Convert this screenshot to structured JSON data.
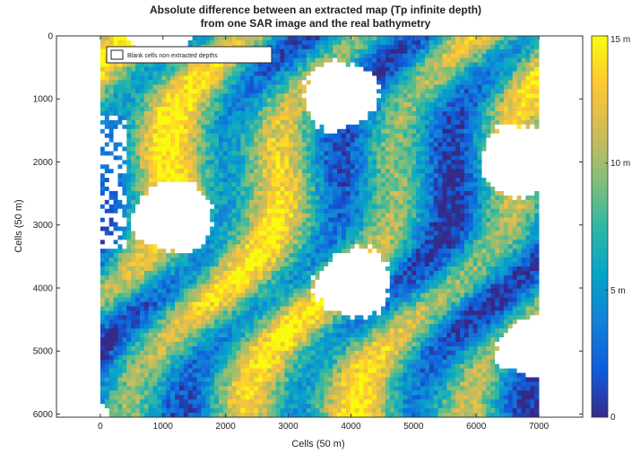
{
  "chart_data": {
    "type": "heatmap",
    "title_lines": [
      "Absolute difference between an extracted map (Tp infinite depth)",
      "from one SAR image and the real bathymetry"
    ],
    "xlabel": "Cells (50 m)",
    "ylabel": "Cells (50 m)",
    "xlim": [
      -700,
      7700
    ],
    "ylim": [
      0,
      6050
    ],
    "y_reversed": true,
    "x_ticks": [
      0,
      1000,
      2000,
      3000,
      4000,
      5000,
      6000,
      7000
    ],
    "x_tick_labels": [
      "0",
      "1000",
      "2000",
      "3000",
      "4000",
      "5000",
      "6000",
      "7000"
    ],
    "y_ticks": [
      0,
      1000,
      2000,
      3000,
      4000,
      5000,
      6000
    ],
    "y_tick_labels": [
      "0",
      "1000",
      "2000",
      "3000",
      "4000",
      "5000",
      "6000"
    ],
    "data_extent": {
      "x": [
        0,
        7000
      ],
      "y": [
        0,
        6050
      ]
    },
    "colorbar": {
      "range": [
        0,
        15
      ],
      "colormap": "parula",
      "ticks": [
        0,
        5,
        10,
        15
      ],
      "tick_labels": [
        "0",
        "5 m",
        "10 m",
        "15 m"
      ],
      "colors": [
        "#352a87",
        "#0f5cdd",
        "#1481d6",
        "#06a4ca",
        "#2eb7a4",
        "#87bf77",
        "#d1bb59",
        "#fec832",
        "#f9fb0e"
      ]
    },
    "legend": {
      "placement": "top-left",
      "label": "Blank cells non extracted depths",
      "swatch_color": "#ffffff"
    },
    "grid": false,
    "blank_color": "#ffffff"
  }
}
